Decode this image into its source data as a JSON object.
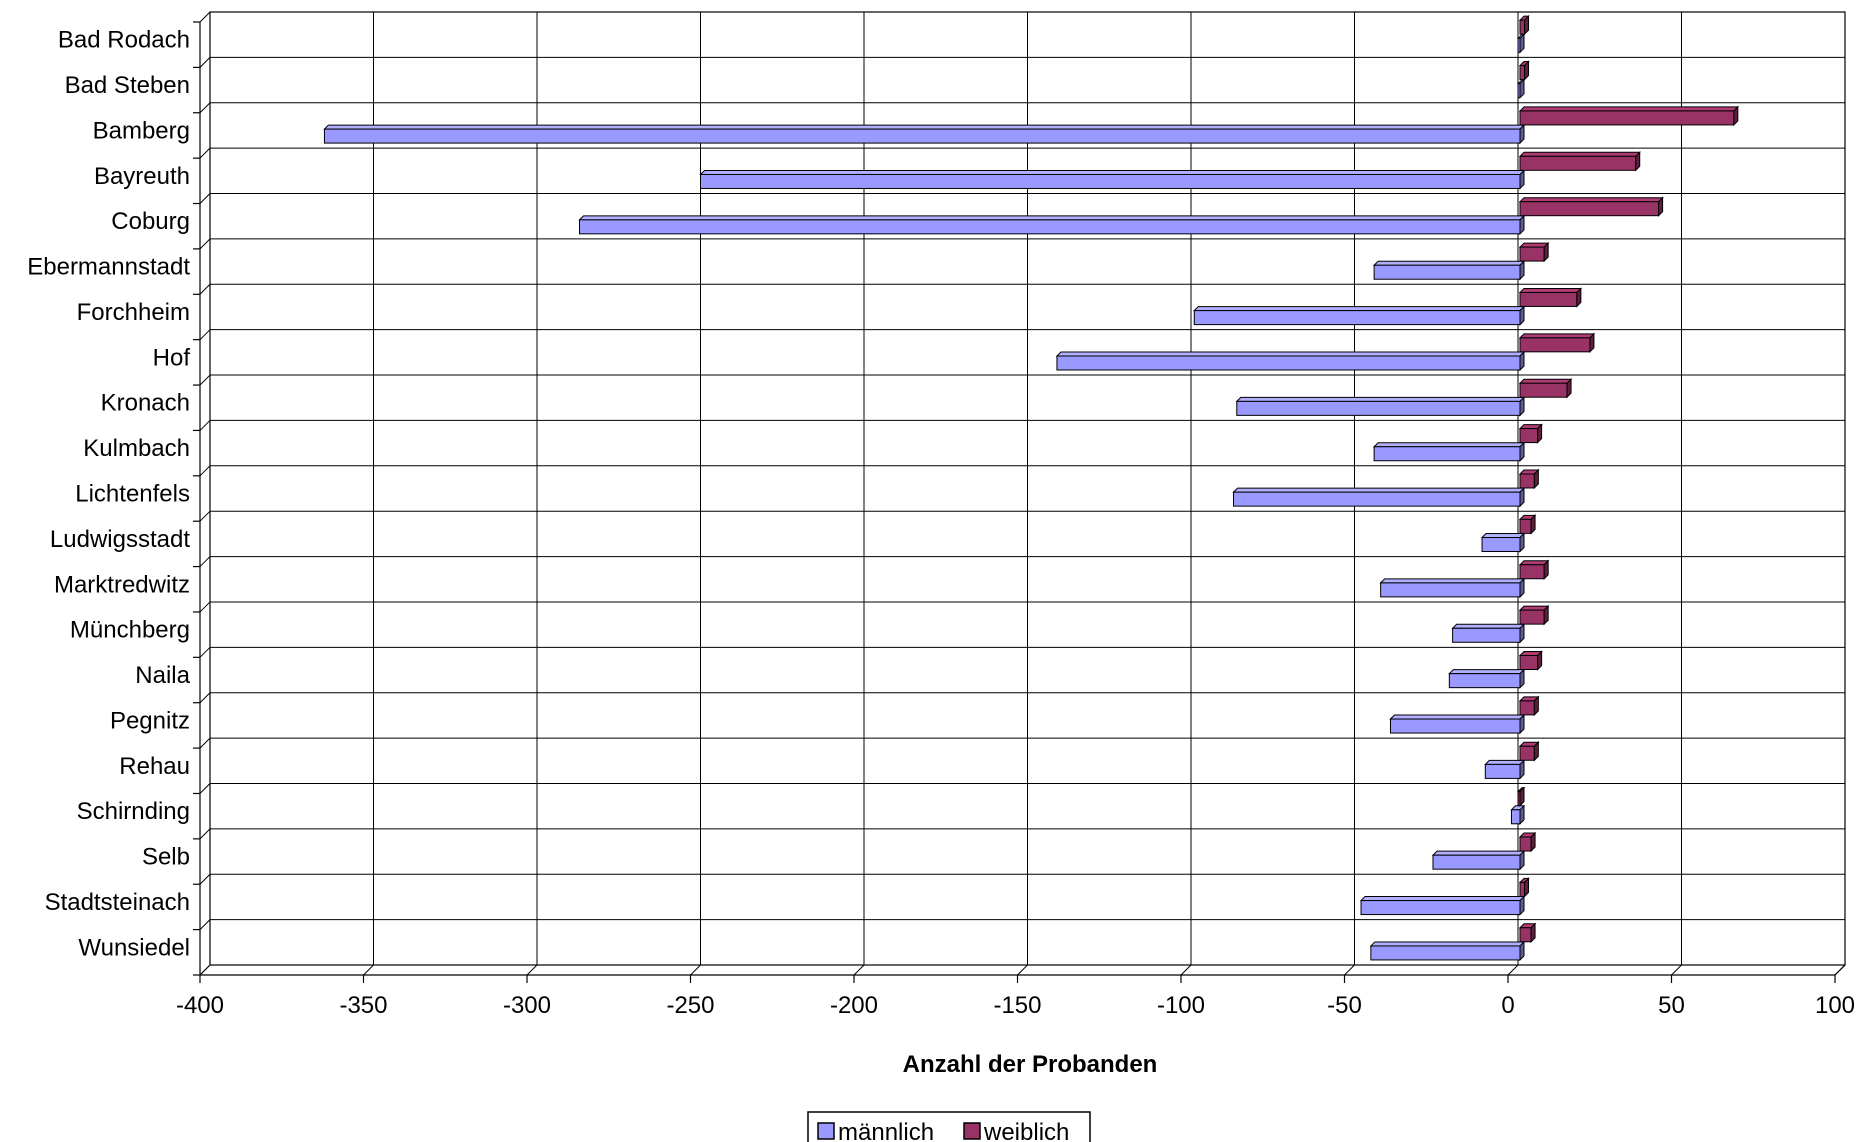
{
  "chart_data": {
    "type": "bar",
    "orientation": "horizontal",
    "categories": [
      "Bad Rodach",
      "Bad Steben",
      "Bamberg",
      "Bayreuth",
      "Coburg",
      "Ebermannstadt",
      "Forchheim",
      "Hof",
      "Kronach",
      "Kulmbach",
      "Lichtenfels",
      "Ludwigsstadt",
      "Marktredwitz",
      "Münchberg",
      "Naila",
      "Pegnitz",
      "Rehau",
      "Schirnding",
      "Selb",
      "Stadtsteinach",
      "Wunsiedel"
    ],
    "series": [
      {
        "name": "männlich",
        "color": "#9999ff",
        "values": [
          0,
          0,
          -365,
          -250,
          -287,
          -44,
          -99,
          -141,
          -86,
          -44,
          -87,
          -11,
          -42,
          -20,
          -21,
          -39,
          -10,
          -2,
          -26,
          -48,
          -45
        ]
      },
      {
        "name": "weiblich",
        "color": "#993366",
        "values": [
          2,
          2,
          66,
          36,
          43,
          8,
          18,
          22,
          15,
          6,
          5,
          4,
          8,
          8,
          6,
          5,
          5,
          0,
          4,
          2,
          4
        ]
      }
    ],
    "xlabel": "Anzahl der Probanden",
    "ylabel": "",
    "xlim": [
      -400,
      100
    ],
    "xticks": [
      -400,
      -350,
      -300,
      -250,
      -200,
      -150,
      -100,
      -50,
      0,
      50,
      100
    ],
    "grid": true,
    "legend_position": "bottom"
  }
}
